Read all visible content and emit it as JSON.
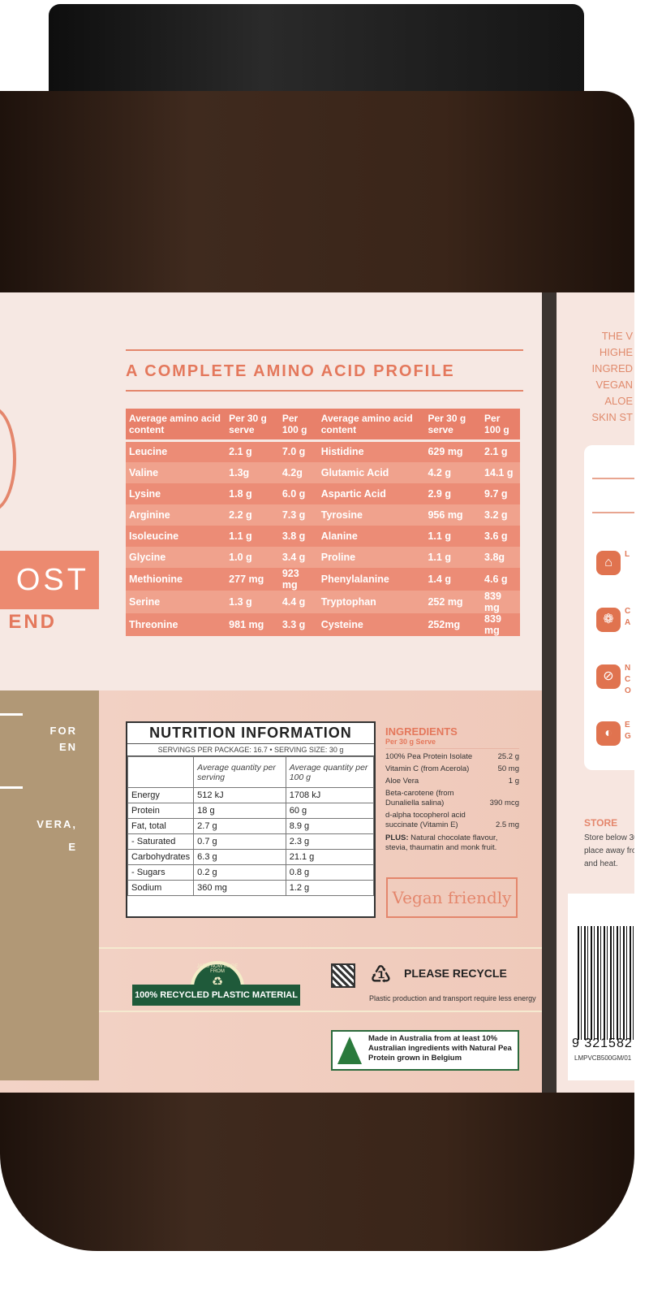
{
  "colors": {
    "accent": "#e4785c",
    "jar": "#3a2519",
    "lid": "#1a1a1a",
    "kraft": "#b19876",
    "badge_green": "#1f5a3a"
  },
  "front": {
    "brand_fragment": "OST",
    "sub_fragment": "END",
    "kraft_lines": [
      "FOR",
      "EN",
      "VERA,",
      "E"
    ]
  },
  "amino": {
    "title": "A COMPLETE AMINO ACID PROFILE",
    "headers": [
      "Average amino acid content",
      "Per 30 g serve",
      "Per 100 g",
      "Average amino acid content",
      "Per 30 g serve",
      "Per 100 g"
    ],
    "rows": [
      [
        "Leucine",
        "2.1 g",
        "7.0 g",
        "Histidine",
        "629 mg",
        "2.1 g"
      ],
      [
        "Valine",
        "1.3g",
        "4.2g",
        "Glutamic Acid",
        "4.2 g",
        "14.1 g"
      ],
      [
        "Lysine",
        "1.8 g",
        "6.0 g",
        "Aspartic Acid",
        "2.9 g",
        "9.7 g"
      ],
      [
        "Arginine",
        "2.2 g",
        "7.3 g",
        "Tyrosine",
        "956 mg",
        "3.2 g"
      ],
      [
        "Isoleucine",
        "1.1 g",
        "3.8 g",
        "Alanine",
        "1.1 g",
        "3.6 g"
      ],
      [
        "Glycine",
        "1.0 g",
        "3.4 g",
        "Proline",
        "1.1 g",
        "3.8g"
      ],
      [
        "Methionine",
        "277 mg",
        "923 mg",
        "Phenylalanine",
        "1.4 g",
        "4.6 g"
      ],
      [
        "Serine",
        "1.3 g",
        "4.4 g",
        "Tryptophan",
        "252 mg",
        "839 mg"
      ],
      [
        "Threonine",
        "981 mg",
        "3.3 g",
        "Cysteine",
        "252mg",
        "839 mg"
      ]
    ]
  },
  "nutrition": {
    "title": "NUTRITION INFORMATION",
    "servings": "SERVINGS PER PACKAGE: 16.7 • SERVING SIZE: 30 g",
    "col_headers": [
      "Average quantity per serving",
      "Average quantity per 100 g"
    ],
    "rows": [
      [
        "Energy",
        "512 kJ",
        "1708 kJ"
      ],
      [
        "Protein",
        "18 g",
        "60 g"
      ],
      [
        "Fat, total",
        "2.7 g",
        "8.9 g"
      ],
      [
        "- Saturated",
        "0.7 g",
        "2.3 g"
      ],
      [
        "Carbohydrates",
        "6.3 g",
        "21.1 g"
      ],
      [
        "- Sugars",
        "0.2 g",
        "0.8 g"
      ],
      [
        "Sodium",
        "360 mg",
        "1.2 g"
      ]
    ]
  },
  "ingredients": {
    "title": "INGREDIENTS",
    "per": "Per 30 g Serve",
    "items": [
      [
        "100% Pea Protein Isolate",
        "25.2 g"
      ],
      [
        "Vitamin C (from Acerola)",
        "50 mg"
      ],
      [
        "Aloe Vera",
        "1 g"
      ],
      [
        "Beta-carotene (from Dunaliella salina)",
        "390 mcg"
      ],
      [
        "d-alpha tocopherol acid succinate (Vitamin E)",
        "2.5 mg"
      ]
    ],
    "plus_label": "PLUS:",
    "plus_text": "Natural chocolate flavour, stevia, thaumatin and monk fruit.",
    "vegan": "Vegan friendly"
  },
  "recycle": {
    "badge_top": "JARS NOW MADE FROM",
    "badge": "100% RECYCLED PLASTIC MATERIAL",
    "number": "1",
    "please": "PLEASE RECYCLE",
    "note": "Plastic production and transport require less energy"
  },
  "made_in": "Made in Australia from at least 10% Australian ingredients with Natural Pea Protein grown in Belgium",
  "side": {
    "lines": [
      "THE V",
      "HIGHE",
      "INGRED",
      "VEGAN",
      "ALOE",
      "SKIN ST"
    ],
    "features": [
      {
        "icon": "jar-icon",
        "text": "L"
      },
      {
        "icon": "bubbles-icon",
        "text": "C\nA"
      },
      {
        "icon": "no-dropper-icon",
        "text": "N\nC\nO"
      },
      {
        "icon": "pea-pod-icon",
        "text": "E\nG"
      }
    ],
    "store_title": "STORE",
    "store_text": [
      "Store below 30",
      "place away fro",
      "and heat."
    ],
    "barcode": "9 321582",
    "code": "LMPVCB500GM/01"
  }
}
